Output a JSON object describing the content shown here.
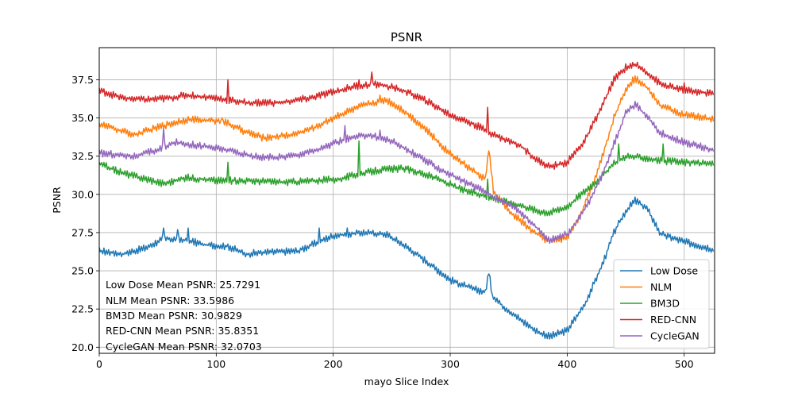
{
  "chart_data": {
    "type": "line",
    "title": "PSNR",
    "xlabel": "mayo Slice Index",
    "ylabel": "PSNR",
    "xlim": [
      0,
      526
    ],
    "ylim": [
      19.6,
      39.6
    ],
    "xticks": [
      0,
      100,
      200,
      300,
      400,
      500
    ],
    "yticks": [
      20.0,
      22.5,
      25.0,
      27.5,
      30.0,
      32.5,
      35.0,
      37.5
    ],
    "grid": true,
    "legend_position": "lower-right",
    "series": [
      {
        "name": "Low Dose",
        "color": "#1f77b4",
        "points": [
          [
            0,
            26.3
          ],
          [
            20,
            26.1
          ],
          [
            40,
            26.5
          ],
          [
            55,
            27.1
          ],
          [
            75,
            27.0
          ],
          [
            90,
            26.7
          ],
          [
            110,
            26.6
          ],
          [
            125,
            26.1
          ],
          [
            140,
            26.2
          ],
          [
            170,
            26.3
          ],
          [
            185,
            26.8
          ],
          [
            200,
            27.3
          ],
          [
            225,
            27.5
          ],
          [
            245,
            27.4
          ],
          [
            260,
            26.7
          ],
          [
            280,
            25.6
          ],
          [
            300,
            24.4
          ],
          [
            320,
            23.8
          ],
          [
            330,
            23.6
          ],
          [
            333,
            24.9
          ],
          [
            336,
            23.4
          ],
          [
            345,
            22.7
          ],
          [
            360,
            21.8
          ],
          [
            375,
            21.0
          ],
          [
            385,
            20.7
          ],
          [
            400,
            21.1
          ],
          [
            415,
            22.8
          ],
          [
            430,
            25.4
          ],
          [
            440,
            27.5
          ],
          [
            450,
            28.9
          ],
          [
            458,
            29.6
          ],
          [
            468,
            29.1
          ],
          [
            480,
            27.4
          ],
          [
            500,
            26.9
          ],
          [
            515,
            26.6
          ],
          [
            525,
            26.4
          ]
        ],
        "spikes": [
          [
            55,
            27.8
          ],
          [
            67,
            27.7
          ],
          [
            76,
            27.8
          ],
          [
            188,
            27.8
          ],
          [
            212,
            27.8
          ]
        ]
      },
      {
        "name": "NLM",
        "color": "#ff7f0e",
        "points": [
          [
            0,
            34.6
          ],
          [
            30,
            33.9
          ],
          [
            55,
            34.5
          ],
          [
            75,
            34.9
          ],
          [
            105,
            34.8
          ],
          [
            125,
            34.1
          ],
          [
            140,
            33.7
          ],
          [
            165,
            33.9
          ],
          [
            185,
            34.4
          ],
          [
            205,
            35.2
          ],
          [
            225,
            35.8
          ],
          [
            245,
            36.2
          ],
          [
            260,
            35.5
          ],
          [
            280,
            34.2
          ],
          [
            295,
            33.0
          ],
          [
            315,
            31.8
          ],
          [
            330,
            31.0
          ],
          [
            333,
            32.9
          ],
          [
            337,
            30.2
          ],
          [
            350,
            28.9
          ],
          [
            360,
            28.3
          ],
          [
            370,
            27.6
          ],
          [
            385,
            26.9
          ],
          [
            400,
            27.2
          ],
          [
            410,
            28.5
          ],
          [
            420,
            30.2
          ],
          [
            430,
            32.5
          ],
          [
            440,
            35.0
          ],
          [
            450,
            36.9
          ],
          [
            458,
            37.6
          ],
          [
            468,
            37.0
          ],
          [
            480,
            35.8
          ],
          [
            500,
            35.2
          ],
          [
            525,
            34.9
          ]
        ],
        "spikes": [
          [
            105,
            35.0
          ],
          [
            240,
            36.5
          ]
        ]
      },
      {
        "name": "BM3D",
        "color": "#2ca02c",
        "points": [
          [
            0,
            32.0
          ],
          [
            20,
            31.4
          ],
          [
            40,
            31.0
          ],
          [
            55,
            30.7
          ],
          [
            75,
            31.1
          ],
          [
            100,
            30.9
          ],
          [
            125,
            30.9
          ],
          [
            160,
            30.8
          ],
          [
            185,
            30.9
          ],
          [
            205,
            31.0
          ],
          [
            220,
            31.3
          ],
          [
            240,
            31.6
          ],
          [
            260,
            31.7
          ],
          [
            275,
            31.4
          ],
          [
            290,
            31.0
          ],
          [
            310,
            30.3
          ],
          [
            330,
            29.9
          ],
          [
            345,
            29.6
          ],
          [
            360,
            29.3
          ],
          [
            375,
            28.9
          ],
          [
            385,
            28.8
          ],
          [
            400,
            29.2
          ],
          [
            415,
            30.2
          ],
          [
            430,
            31.2
          ],
          [
            440,
            32.0
          ],
          [
            450,
            32.5
          ],
          [
            465,
            32.4
          ],
          [
            480,
            32.2
          ],
          [
            500,
            32.1
          ],
          [
            525,
            32.0
          ]
        ],
        "spikes": [
          [
            110,
            32.1
          ],
          [
            222,
            33.5
          ],
          [
            332,
            31.0
          ],
          [
            444,
            33.3
          ],
          [
            482,
            33.3
          ]
        ]
      },
      {
        "name": "RED-CNN",
        "color": "#d62728",
        "points": [
          [
            0,
            36.8
          ],
          [
            20,
            36.3
          ],
          [
            40,
            36.2
          ],
          [
            60,
            36.3
          ],
          [
            75,
            36.5
          ],
          [
            100,
            36.3
          ],
          [
            125,
            36.0
          ],
          [
            155,
            36.0
          ],
          [
            180,
            36.3
          ],
          [
            200,
            36.7
          ],
          [
            220,
            37.1
          ],
          [
            240,
            37.2
          ],
          [
            260,
            36.8
          ],
          [
            280,
            36.1
          ],
          [
            300,
            35.2
          ],
          [
            320,
            34.6
          ],
          [
            340,
            33.8
          ],
          [
            360,
            33.2
          ],
          [
            375,
            32.2
          ],
          [
            385,
            31.8
          ],
          [
            400,
            32.1
          ],
          [
            415,
            33.5
          ],
          [
            430,
            35.8
          ],
          [
            440,
            37.5
          ],
          [
            450,
            38.3
          ],
          [
            458,
            38.5
          ],
          [
            468,
            38.0
          ],
          [
            480,
            37.2
          ],
          [
            500,
            36.8
          ],
          [
            525,
            36.6
          ]
        ],
        "spikes": [
          [
            110,
            37.5
          ],
          [
            222,
            37.5
          ],
          [
            233,
            38.0
          ],
          [
            332,
            35.7
          ],
          [
            500,
            37.3
          ]
        ]
      },
      {
        "name": "CycleGAN",
        "color": "#9467bd",
        "points": [
          [
            0,
            32.7
          ],
          [
            30,
            32.5
          ],
          [
            50,
            32.9
          ],
          [
            65,
            33.4
          ],
          [
            85,
            33.2
          ],
          [
            110,
            32.9
          ],
          [
            130,
            32.5
          ],
          [
            150,
            32.4
          ],
          [
            170,
            32.6
          ],
          [
            190,
            33.0
          ],
          [
            210,
            33.6
          ],
          [
            230,
            33.9
          ],
          [
            250,
            33.5
          ],
          [
            270,
            32.6
          ],
          [
            290,
            31.7
          ],
          [
            310,
            30.9
          ],
          [
            330,
            30.2
          ],
          [
            340,
            29.7
          ],
          [
            355,
            29.2
          ],
          [
            370,
            28.1
          ],
          [
            385,
            27.0
          ],
          [
            400,
            27.4
          ],
          [
            410,
            28.4
          ],
          [
            420,
            29.7
          ],
          [
            430,
            31.3
          ],
          [
            440,
            33.3
          ],
          [
            450,
            35.3
          ],
          [
            458,
            35.9
          ],
          [
            468,
            35.1
          ],
          [
            480,
            34.0
          ],
          [
            500,
            33.4
          ],
          [
            525,
            32.9
          ]
        ],
        "spikes": [
          [
            55,
            34.3
          ],
          [
            210,
            34.5
          ],
          [
            240,
            34.2
          ]
        ]
      }
    ],
    "annotations": [
      "Low Dose Mean PSNR: 25.7291",
      "NLM Mean PSNR: 33.5986",
      "BM3D Mean PSNR: 30.9829",
      "RED-CNN Mean PSNR: 35.8351",
      "CycleGAN Mean PSNR: 32.0703"
    ]
  }
}
